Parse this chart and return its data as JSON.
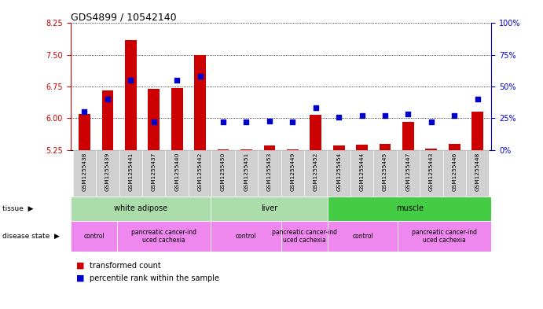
{
  "title": "GDS4899 / 10542140",
  "samples": [
    "GSM1255438",
    "GSM1255439",
    "GSM1255441",
    "GSM1255437",
    "GSM1255440",
    "GSM1255442",
    "GSM1255450",
    "GSM1255451",
    "GSM1255453",
    "GSM1255449",
    "GSM1255452",
    "GSM1255454",
    "GSM1255444",
    "GSM1255445",
    "GSM1255447",
    "GSM1255443",
    "GSM1255446",
    "GSM1255448"
  ],
  "transformed_count": [
    6.1,
    6.65,
    7.85,
    6.7,
    6.72,
    7.5,
    5.26,
    5.26,
    5.35,
    5.26,
    6.08,
    5.35,
    5.38,
    5.4,
    5.92,
    5.28,
    5.4,
    6.15
  ],
  "percentile_rank": [
    30,
    40,
    55,
    22,
    55,
    58,
    22,
    22,
    23,
    22,
    33,
    26,
    27,
    27,
    28,
    22,
    27,
    40
  ],
  "ylim_left": [
    5.25,
    8.25
  ],
  "ylim_right": [
    0,
    100
  ],
  "yticks_left": [
    5.25,
    6.0,
    6.75,
    7.5,
    8.25
  ],
  "yticks_right": [
    0,
    25,
    50,
    75,
    100
  ],
  "bar_color": "#cc0000",
  "dot_color": "#0000cc",
  "tissue_groups": [
    {
      "label": "white adipose",
      "start": 0,
      "end": 5,
      "color": "#aaddaa"
    },
    {
      "label": "liver",
      "start": 6,
      "end": 10,
      "color": "#aaddaa"
    },
    {
      "label": "muscle",
      "start": 11,
      "end": 17,
      "color": "#44cc44"
    }
  ],
  "disease_groups": [
    {
      "label": "control",
      "start": 0,
      "end": 1
    },
    {
      "label": "pancreatic cancer-ind\nuced cachexia",
      "start": 2,
      "end": 5
    },
    {
      "label": "control",
      "start": 6,
      "end": 8
    },
    {
      "label": "pancreatic cancer-ind\nuced cachexia",
      "start": 9,
      "end": 10
    },
    {
      "label": "control",
      "start": 11,
      "end": 13
    },
    {
      "label": "pancreatic cancer-ind\nuced cachexia",
      "start": 14,
      "end": 17
    }
  ],
  "disease_color": "#ee88ee",
  "background_color": "#ffffff",
  "grid_color": "#000000",
  "tick_label_color_left": "#cc0000",
  "tick_label_color_right": "#0000cc",
  "sample_bg_color": "#d0d0d0"
}
